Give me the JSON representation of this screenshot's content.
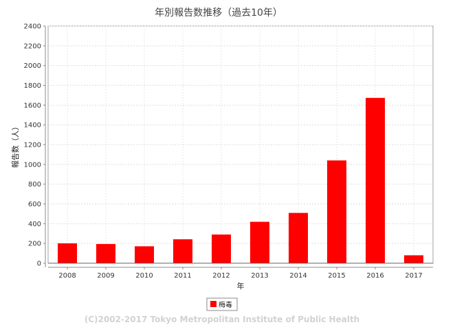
{
  "chart_data": {
    "type": "bar",
    "title": "年別報告数推移（過去10年）",
    "xlabel": "年",
    "ylabel": "報告数（人）",
    "categories": [
      "2008",
      "2009",
      "2010",
      "2011",
      "2012",
      "2013",
      "2014",
      "2015",
      "2016",
      "2017"
    ],
    "series": [
      {
        "name": "梅毒",
        "color": "#ff0000",
        "values": [
          201,
          194,
          171,
          242,
          290,
          419,
          509,
          1040,
          1673,
          80
        ]
      }
    ],
    "ylim": [
      0,
      2400
    ],
    "yticks": [
      0,
      200,
      400,
      600,
      800,
      1000,
      1200,
      1400,
      1600,
      1800,
      2000,
      2200,
      2400
    ],
    "grid": true,
    "legend_position": "bottom-center"
  },
  "footer": {
    "copyright": "(C)2002-2017 Tokyo Metropolitan Institute of Public Health"
  }
}
